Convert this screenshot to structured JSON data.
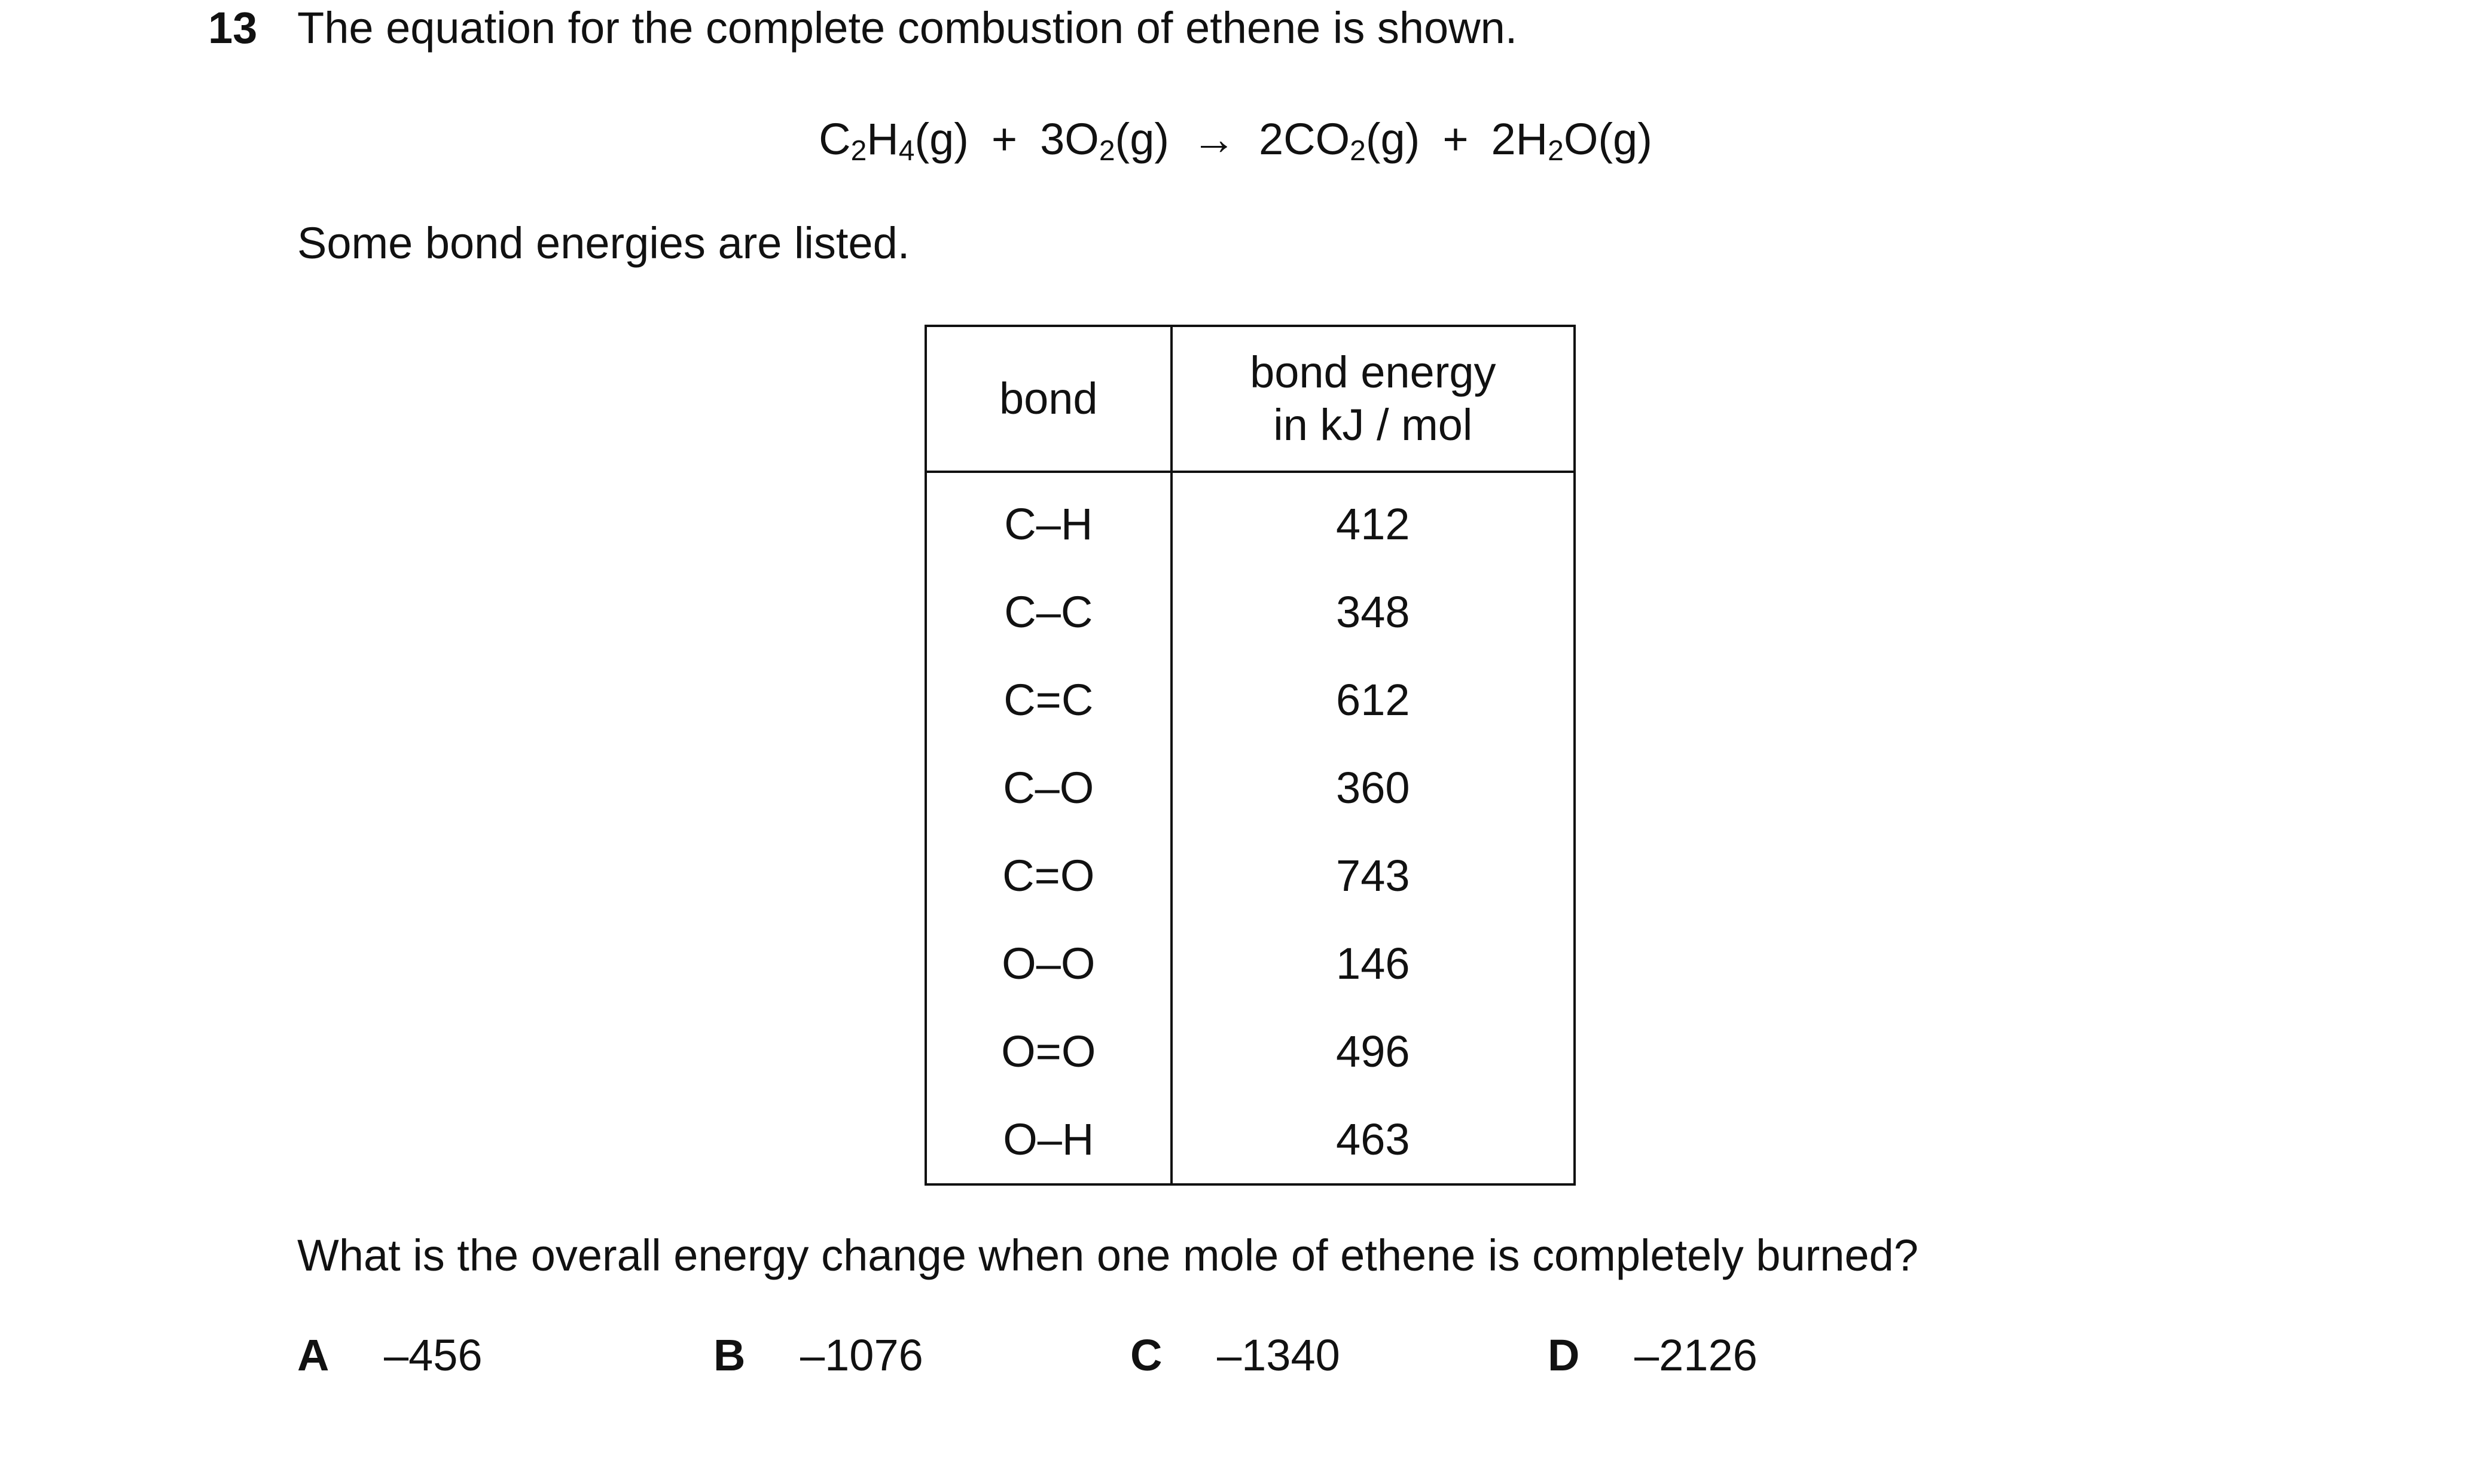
{
  "question_number": "13",
  "stem": "The equation for the complete combustion of ethene is shown.",
  "equation": {
    "reactant1": {
      "pre": "C",
      "s1": "2",
      "mid": "H",
      "s2": "4",
      "post": "(g)"
    },
    "plus1": "+",
    "reactant2": {
      "pre": "3O",
      "s1": "2",
      "post": "(g)"
    },
    "arrow": "→",
    "product1": {
      "pre": "2CO",
      "s1": "2",
      "post": "(g)"
    },
    "plus2": "+",
    "product2": {
      "pre": "2H",
      "s1": "2",
      "post": "O(g)"
    }
  },
  "intro": "Some bond energies are listed.",
  "table": {
    "headers": {
      "bond": "bond",
      "energy_line1": "bond energy",
      "energy_line2": "in kJ / mol"
    },
    "rows": [
      {
        "bond": "C–H",
        "energy": "412"
      },
      {
        "bond": "C–C",
        "energy": "348"
      },
      {
        "bond": "C=C",
        "energy": "612"
      },
      {
        "bond": "C–O",
        "energy": "360"
      },
      {
        "bond": "C=O",
        "energy": "743"
      },
      {
        "bond": "O–O",
        "energy": "146"
      },
      {
        "bond": "O=O",
        "energy": "496"
      },
      {
        "bond": "O–H",
        "energy": "463"
      }
    ]
  },
  "question": "What is the overall energy change when one mole of ethene is completely burned?",
  "options": [
    {
      "letter": "A",
      "value": "–456"
    },
    {
      "letter": "B",
      "value": "–1076"
    },
    {
      "letter": "C",
      "value": "–1340"
    },
    {
      "letter": "D",
      "value": "–2126"
    }
  ]
}
